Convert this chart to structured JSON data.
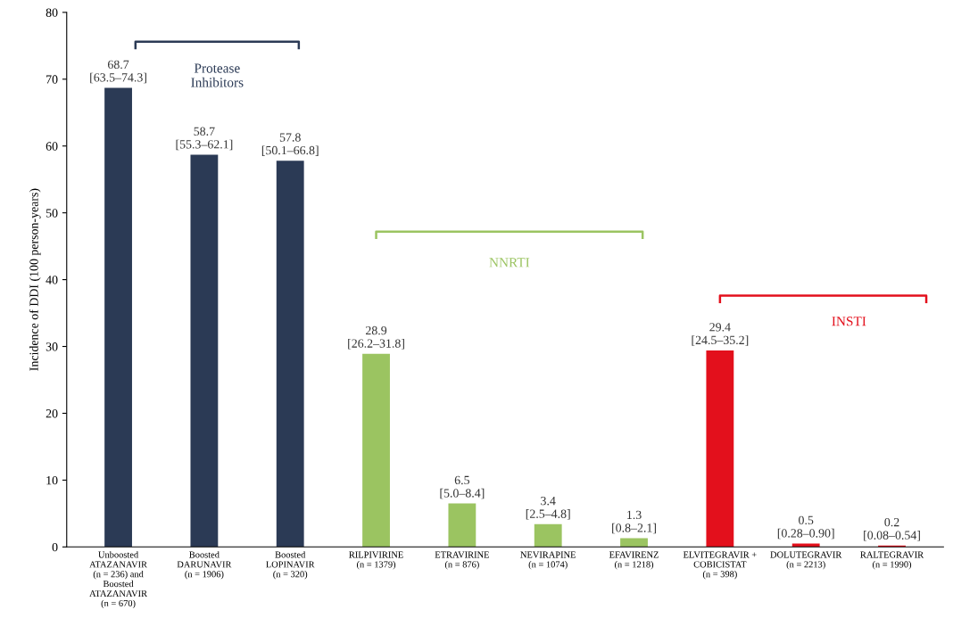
{
  "chart_data": {
    "type": "bar",
    "ylabel": "Incidence of DDI (100 person-years)",
    "categories": [
      "Unboosted\nATAZANAVIR\n(n = 236) and\nBoosted\nATAZANAVIR\n(n = 670)",
      "Boosted\nDARUNAVIR\n(n = 1906)",
      "Boosted\nLOPINAVIR\n(n = 320)",
      "RILPIVIRINE\n(n = 1379)",
      "ETRAVIRINE\n(n = 876)",
      "NEVIRAPINE\n(n = 1074)",
      "EFAVIRENZ\n(n = 1218)",
      "ELVITEGRAVIR +\nCOBICISTAT\n(n = 398)",
      "DOLUTEGRAVIR\n(n = 2213)",
      "RALTEGRAVIR\n(n = 1990)"
    ],
    "values": [
      68.7,
      58.7,
      57.8,
      28.9,
      6.5,
      3.4,
      1.3,
      29.4,
      0.5,
      0.2
    ],
    "colors": [
      "#2b3a55",
      "#2b3a55",
      "#2b3a55",
      "#9bc461",
      "#9bc461",
      "#9bc461",
      "#9bc461",
      "#e3101c",
      "#e3101c",
      "#e3101c"
    ],
    "value_labels": [
      "68.7\n[63.5–74.3]",
      "58.7\n[55.3–62.1]",
      "57.8\n[50.1–66.8]",
      "28.9\n[26.2–31.8]",
      "6.5\n[5.0–8.4]",
      "3.4\n[2.5–4.8]",
      "1.3\n[0.8–2.1]",
      "29.4\n[24.5–35.2]",
      "0.5\n[0.28–0.90]",
      "0.2\n[0.08–0.54]"
    ],
    "annotations": [
      "Protease\nInhibitors",
      "NNRTI",
      "INSTI"
    ],
    "ylim": [
      0,
      80
    ],
    "yticks": [
      0,
      10,
      20,
      30,
      40,
      50,
      60,
      70,
      80
    ],
    "grid": false,
    "legend": false
  }
}
